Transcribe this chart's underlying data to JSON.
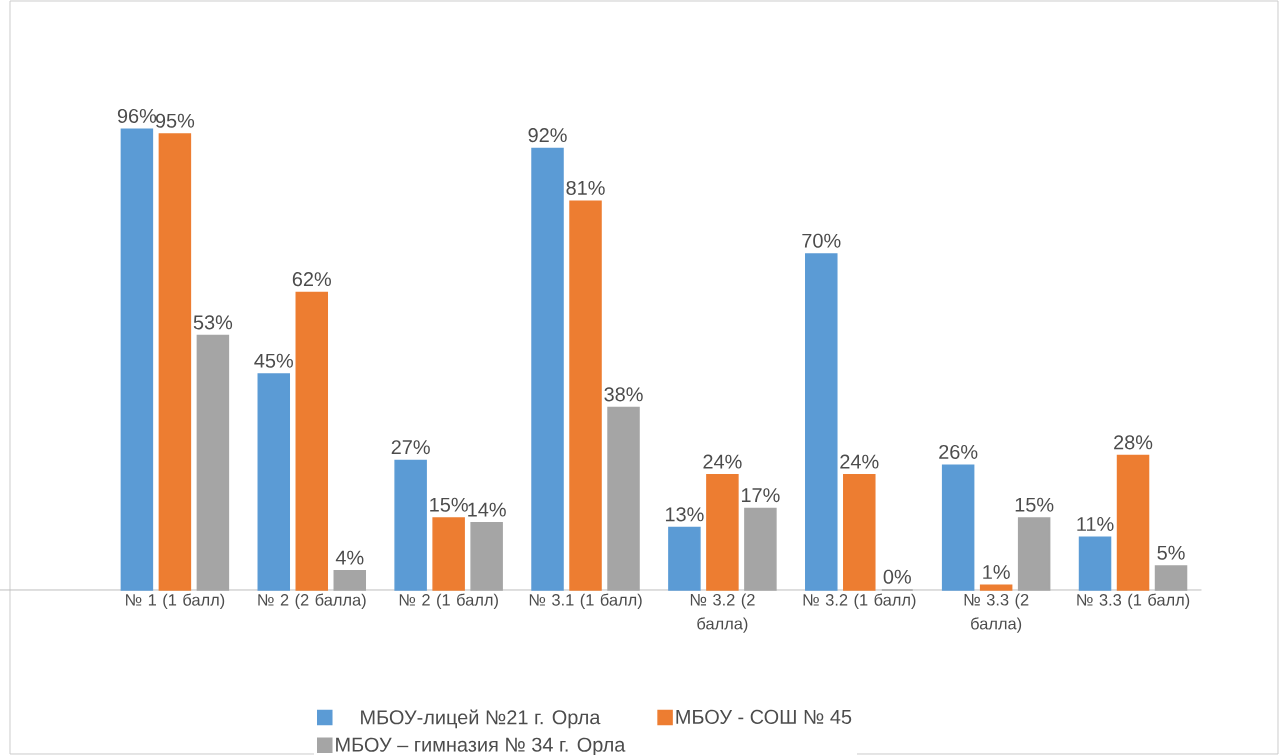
{
  "chart_data": {
    "type": "bar",
    "categories": [
      null,
      "№ 1 (1 балл)",
      "№ 2 (2 балла)",
      "№ 2 (1 балл)",
      "№ 3.1 (1 балл)",
      "№ 3.2 (2 балла)",
      "№ 3.2 (1 балл)",
      "№ 3.3 (2 балла)",
      "№ 3.3 (1 балл)"
    ],
    "series": [
      {
        "name": "МБОУ-лицей №21 г. Орла",
        "color": "#5b9bd5",
        "values": [
          null,
          96,
          45,
          27,
          92,
          13,
          70,
          26,
          11
        ],
        "value_labels": [
          null,
          "96%",
          "45%",
          "27%",
          "92%",
          "13%",
          "70%",
          "26%",
          "11%"
        ]
      },
      {
        "name": "МБОУ - СОШ № 45",
        "color": "#ed7d31",
        "values": [
          null,
          95,
          62,
          15,
          81,
          24,
          24,
          1,
          28
        ],
        "value_labels": [
          null,
          "95%",
          "62%",
          "15%",
          "81%",
          "24%",
          "24%",
          "1%",
          "28%"
        ]
      },
      {
        "name": "МБОУ – гимназия № 34 г. Орла",
        "color": "#a5a5a5",
        "values": [
          null,
          53,
          4,
          14,
          38,
          17,
          0,
          15,
          5
        ],
        "value_labels": [
          null,
          "53%",
          "4%",
          "14%",
          "38%",
          "17%",
          "0%",
          "15%",
          "5%"
        ]
      }
    ],
    "legend": "bottom"
  }
}
